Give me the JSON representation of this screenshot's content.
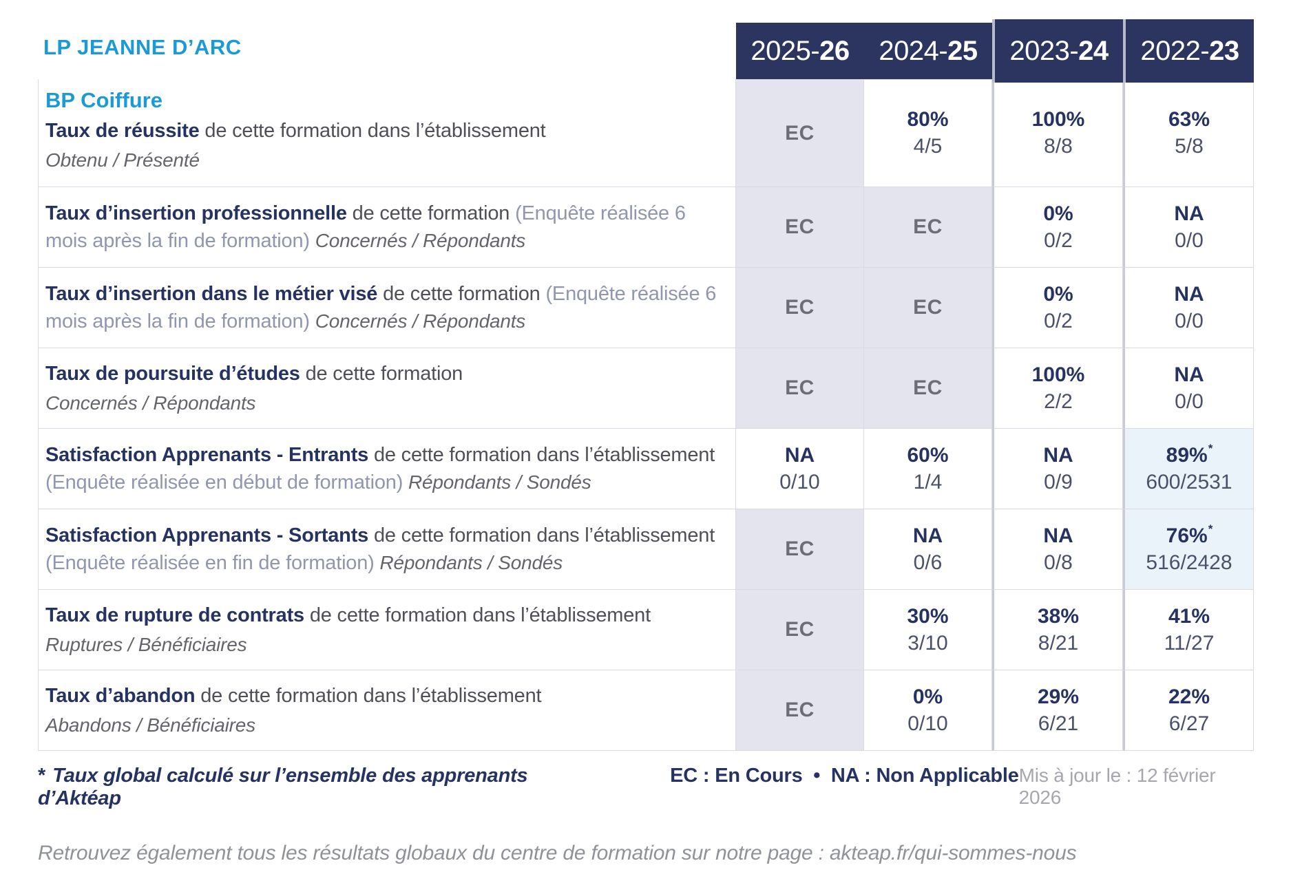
{
  "colors": {
    "accent_blue": "#1b9ad6",
    "navy": "#263360",
    "header_bg": "#2b3560",
    "ec_cell_bg": "#e4e4ee",
    "star_cell_bg": "#eaf3fa",
    "ec_text": "#6d6d76"
  },
  "school": "LP JEANNE D’ARC",
  "program": "BP Coiffure",
  "years": [
    {
      "prefix": "2025-",
      "suffix": "26"
    },
    {
      "prefix": "2024-",
      "suffix": "25"
    },
    {
      "prefix": "2023-",
      "suffix": "24"
    },
    {
      "prefix": "2022-",
      "suffix": "23"
    }
  ],
  "rows": [
    {
      "title": "Taux de réussite",
      "desc": " de cette formation dans l’établissement",
      "paren": "",
      "inline_sub": "",
      "sub": "Obtenu / Présenté",
      "cells": [
        {
          "value": "EC",
          "sub": ""
        },
        {
          "value": "80%",
          "sub": "4/5"
        },
        {
          "value": "100%",
          "sub": "8/8"
        },
        {
          "value": "63%",
          "sub": "5/8"
        }
      ]
    },
    {
      "title": "Taux d’insertion professionnelle",
      "desc": " de cette formation ",
      "paren": "(Enquête réalisée 6 mois après la fin de formation) ",
      "inline_sub": "Concernés / Répondants",
      "sub": "",
      "cells": [
        {
          "value": "EC",
          "sub": ""
        },
        {
          "value": "EC",
          "sub": ""
        },
        {
          "value": "0%",
          "sub": "0/2"
        },
        {
          "value": "NA",
          "sub": "0/0"
        }
      ]
    },
    {
      "title": "Taux d’insertion dans le métier visé",
      "desc": " de cette formation ",
      "paren": "(Enquête réalisée 6 mois après la fin de formation) ",
      "inline_sub": "Concernés / Répondants",
      "sub": "",
      "cells": [
        {
          "value": "EC",
          "sub": ""
        },
        {
          "value": "EC",
          "sub": ""
        },
        {
          "value": "0%",
          "sub": "0/2"
        },
        {
          "value": "NA",
          "sub": "0/0"
        }
      ]
    },
    {
      "title": "Taux de poursuite d’études",
      "desc": " de cette formation",
      "paren": "",
      "inline_sub": "",
      "sub": "Concernés / Répondants",
      "cells": [
        {
          "value": "EC",
          "sub": ""
        },
        {
          "value": "EC",
          "sub": ""
        },
        {
          "value": "100%",
          "sub": "2/2"
        },
        {
          "value": "NA",
          "sub": "0/0"
        }
      ]
    },
    {
      "title": "Satisfaction Apprenants - Entrants",
      "desc": " de cette formation dans l’établissement ",
      "paren": "(Enquête réalisée en début de formation) ",
      "inline_sub": "Répondants / Sondés",
      "sub": "",
      "cells": [
        {
          "value": "NA",
          "sub": "0/10"
        },
        {
          "value": "60%",
          "sub": "1/4"
        },
        {
          "value": "NA",
          "sub": "0/9"
        },
        {
          "value": "89%",
          "star": "*",
          "sub": "600/2531"
        }
      ]
    },
    {
      "title": "Satisfaction Apprenants - Sortants",
      "desc": " de cette formation dans l’établissement ",
      "paren": "(Enquête réalisée en fin de formation) ",
      "inline_sub": "Répondants / Sondés",
      "sub": "",
      "cells": [
        {
          "value": "EC",
          "sub": ""
        },
        {
          "value": "NA",
          "sub": "0/6"
        },
        {
          "value": "NA",
          "sub": "0/8"
        },
        {
          "value": "76%",
          "star": "*",
          "sub": "516/2428"
        }
      ]
    },
    {
      "title": "Taux de rupture de contrats",
      "desc": " de cette formation dans l’établissement",
      "paren": "",
      "inline_sub": "",
      "sub": "Ruptures / Bénéficiaires",
      "cells": [
        {
          "value": "EC",
          "sub": ""
        },
        {
          "value": "30%",
          "sub": "3/10"
        },
        {
          "value": "38%",
          "sub": "8/21"
        },
        {
          "value": "41%",
          "sub": "11/27"
        }
      ]
    },
    {
      "title": "Taux d’abandon",
      "desc": " de cette formation dans l’établissement",
      "paren": "",
      "inline_sub": "",
      "sub": "Abandons / Bénéficiaires",
      "cells": [
        {
          "value": "EC",
          "sub": ""
        },
        {
          "value": "0%",
          "sub": "0/10"
        },
        {
          "value": "29%",
          "sub": "6/21"
        },
        {
          "value": "22%",
          "sub": "6/27"
        }
      ]
    }
  ],
  "footer": {
    "asterisk": "*",
    "note": "Taux global calculé sur l’ensemble des apprenants d’Aktéap",
    "legend": "EC : En Cours  •  NA : Non Applicable",
    "updated": "Mis à jour le : 12 février 2026",
    "more": "Retrouvez également tous les résultats globaux du centre de formation sur notre page : akteap.fr/qui-sommes-nous"
  }
}
